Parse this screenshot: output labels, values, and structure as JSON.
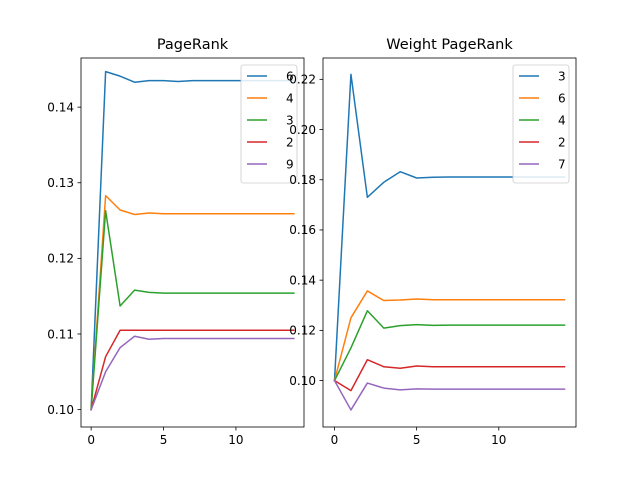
{
  "chart_data": [
    {
      "type": "line",
      "title": "PageRank",
      "xlabel": "",
      "ylabel": "",
      "xlim": [
        -0.7,
        14.7
      ],
      "ylim": [
        0.0977,
        0.1465
      ],
      "xticks": [
        0,
        5,
        10
      ],
      "yticks": [
        0.1,
        0.11,
        0.12,
        0.13,
        0.14
      ],
      "ytick_labels": [
        "0.10",
        "0.11",
        "0.12",
        "0.13",
        "0.14"
      ],
      "legend_position": "top-right",
      "grid": false,
      "x": [
        0,
        1,
        2,
        3,
        4,
        5,
        6,
        7,
        8,
        9,
        10,
        11,
        12,
        13,
        14
      ],
      "series": [
        {
          "name": "6",
          "color": "#1f77b4",
          "values": [
            0.1,
            0.1447,
            0.1441,
            0.1433,
            0.1435,
            0.1435,
            0.1434,
            0.1435,
            0.1435,
            0.1435,
            0.1435,
            0.1435,
            0.1435,
            0.1435,
            0.1435
          ]
        },
        {
          "name": "4",
          "color": "#ff7f0e",
          "values": [
            0.1,
            0.1283,
            0.1264,
            0.1258,
            0.126,
            0.1259,
            0.1259,
            0.1259,
            0.1259,
            0.1259,
            0.1259,
            0.1259,
            0.1259,
            0.1259,
            0.1259
          ]
        },
        {
          "name": "3",
          "color": "#2ca02c",
          "values": [
            0.1,
            0.1263,
            0.1137,
            0.1158,
            0.1155,
            0.1154,
            0.1154,
            0.1154,
            0.1154,
            0.1154,
            0.1154,
            0.1154,
            0.1154,
            0.1154,
            0.1154
          ]
        },
        {
          "name": "2",
          "color": "#d62728",
          "values": [
            0.1,
            0.107,
            0.1105,
            0.1105,
            0.1105,
            0.1105,
            0.1105,
            0.1105,
            0.1105,
            0.1105,
            0.1105,
            0.1105,
            0.1105,
            0.1105,
            0.1105
          ]
        },
        {
          "name": "9",
          "color": "#9467bd",
          "values": [
            0.1,
            0.105,
            0.1082,
            0.1097,
            0.1093,
            0.1094,
            0.1094,
            0.1094,
            0.1094,
            0.1094,
            0.1094,
            0.1094,
            0.1094,
            0.1094,
            0.1094
          ]
        }
      ]
    },
    {
      "type": "line",
      "title": "Weight PageRank",
      "xlabel": "",
      "ylabel": "",
      "xlim": [
        -0.7,
        14.7
      ],
      "ylim": [
        0.0815,
        0.2285
      ],
      "xticks": [
        0,
        5,
        10
      ],
      "yticks": [
        0.1,
        0.12,
        0.14,
        0.16,
        0.18,
        0.2,
        0.22
      ],
      "ytick_labels": [
        "0.10",
        "0.12",
        "0.14",
        "0.16",
        "0.18",
        "0.20",
        "0.22"
      ],
      "legend_position": "top-right",
      "grid": false,
      "x": [
        0,
        1,
        2,
        3,
        4,
        5,
        6,
        7,
        8,
        9,
        10,
        11,
        12,
        13,
        14
      ],
      "series": [
        {
          "name": "3",
          "color": "#1f77b4",
          "values": [
            0.1,
            0.222,
            0.173,
            0.179,
            0.1832,
            0.1807,
            0.181,
            0.1811,
            0.1811,
            0.1811,
            0.1811,
            0.1811,
            0.1811,
            0.1811,
            0.1811
          ]
        },
        {
          "name": "6",
          "color": "#ff7f0e",
          "values": [
            0.1,
            0.125,
            0.1357,
            0.1319,
            0.1321,
            0.1325,
            0.1322,
            0.1322,
            0.1322,
            0.1322,
            0.1322,
            0.1322,
            0.1322,
            0.1322,
            0.1322
          ]
        },
        {
          "name": "4",
          "color": "#2ca02c",
          "values": [
            0.1,
            0.113,
            0.1278,
            0.1209,
            0.1219,
            0.1223,
            0.122,
            0.1221,
            0.1221,
            0.1221,
            0.1221,
            0.1221,
            0.1221,
            0.1221,
            0.1221
          ]
        },
        {
          "name": "2",
          "color": "#d62728",
          "values": [
            0.1,
            0.096,
            0.1083,
            0.1055,
            0.1049,
            0.1058,
            0.1055,
            0.1055,
            0.1055,
            0.1055,
            0.1055,
            0.1055,
            0.1055,
            0.1055,
            0.1055
          ]
        },
        {
          "name": "7",
          "color": "#9467bd",
          "values": [
            0.1,
            0.0883,
            0.099,
            0.097,
            0.0963,
            0.0967,
            0.0966,
            0.0966,
            0.0966,
            0.0966,
            0.0966,
            0.0966,
            0.0966,
            0.0966,
            0.0966
          ]
        }
      ]
    }
  ]
}
